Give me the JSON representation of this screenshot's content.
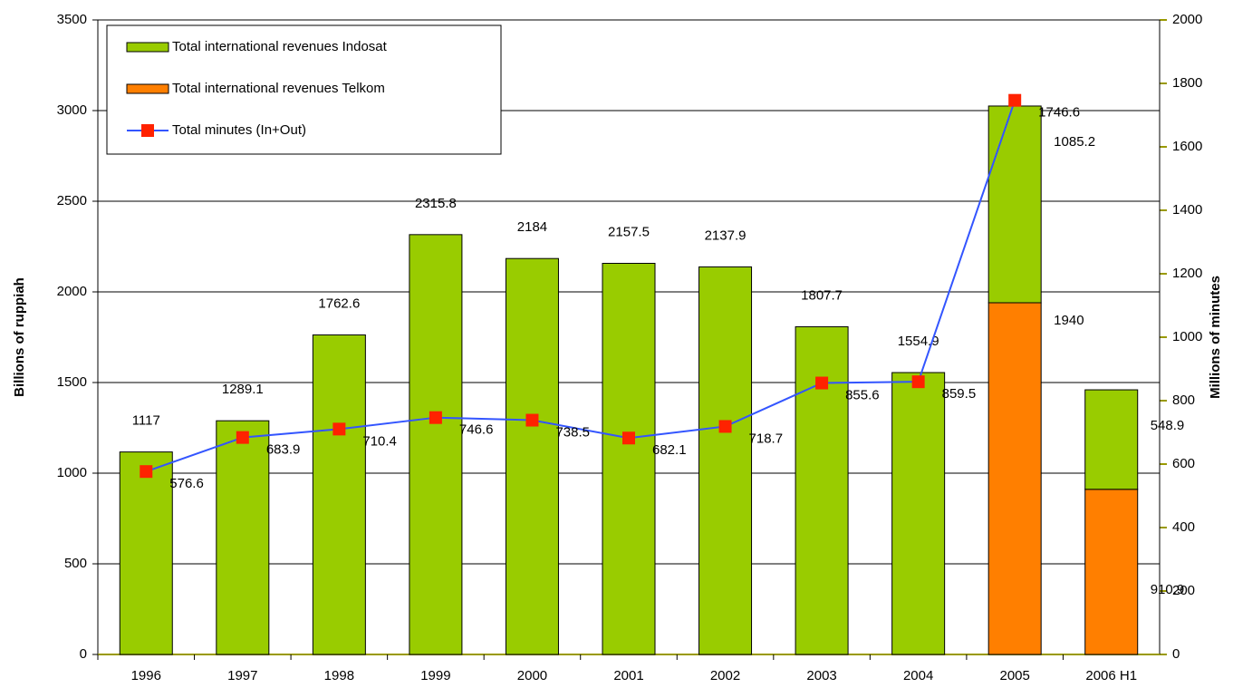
{
  "chart_data": {
    "type": "bar",
    "categories": [
      "1996",
      "1997",
      "1998",
      "1999",
      "2000",
      "2001",
      "2002",
      "2003",
      "2004",
      "2005",
      "2006 H1"
    ],
    "series": [
      {
        "name": "Total international revenues Indosat",
        "color": "#99cc00",
        "type": "bar",
        "values": [
          1117,
          1289.1,
          1762.6,
          2315.8,
          2184,
          2157.5,
          2137.9,
          1807.7,
          1554.9,
          1085.2,
          548.9
        ]
      },
      {
        "name": "Total international revenues Telkom",
        "color": "#ff7f00",
        "type": "bar",
        "values": [
          null,
          null,
          null,
          null,
          null,
          null,
          null,
          null,
          null,
          1940,
          910.9
        ]
      },
      {
        "name": "Total minutes (In+Out)",
        "color": "#3355ff",
        "marker_color": "#ff2200",
        "type": "line",
        "axis": "y2",
        "values": [
          576.6,
          683.9,
          710.4,
          746.6,
          738.5,
          682.1,
          718.7,
          855.6,
          859.5,
          1746.6,
          null
        ]
      }
    ],
    "ylabel": "Billions of ruppiah",
    "y2label": "Millions of minutes",
    "ylim": [
      0,
      3500
    ],
    "yticks": [
      0,
      500,
      1000,
      1500,
      2000,
      2500,
      3000,
      3500
    ],
    "y2lim": [
      0,
      2000
    ],
    "y2ticks": [
      0,
      200,
      400,
      600,
      800,
      1000,
      1200,
      1400,
      1600,
      1800,
      2000
    ],
    "grid": true,
    "legend": "upper left",
    "stacked": true
  }
}
